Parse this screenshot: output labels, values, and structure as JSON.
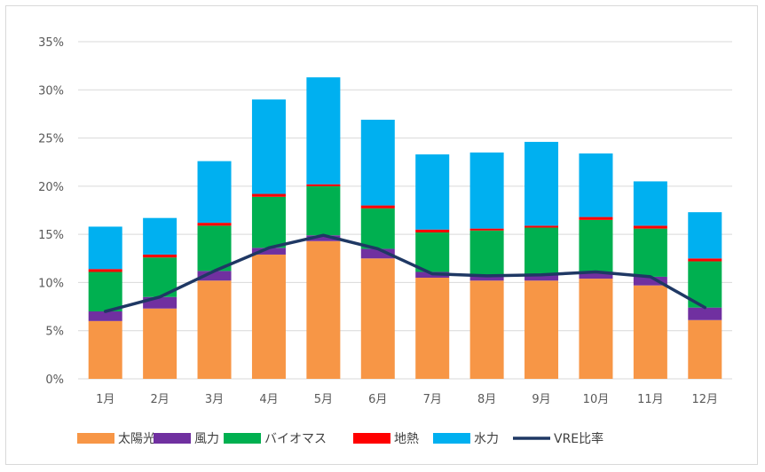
{
  "chart_data": {
    "type": "bar",
    "stacked": true,
    "categories": [
      "1月",
      "2月",
      "3月",
      "4月",
      "5月",
      "6月",
      "7月",
      "8月",
      "9月",
      "10月",
      "11月",
      "12月"
    ],
    "series": [
      {
        "name": "太陽光",
        "color": "#f79646",
        "values": [
          6.0,
          7.3,
          10.2,
          12.9,
          14.3,
          12.5,
          10.5,
          10.2,
          10.2,
          10.4,
          9.7,
          6.1
        ]
      },
      {
        "name": "風力",
        "color": "#7030a0",
        "values": [
          1.0,
          1.2,
          1.0,
          0.7,
          0.6,
          1.0,
          0.6,
          0.5,
          0.6,
          0.7,
          0.9,
          1.3
        ]
      },
      {
        "name": "バイオマス",
        "color": "#00b050",
        "values": [
          4.1,
          4.1,
          4.7,
          5.3,
          5.1,
          4.2,
          4.1,
          4.7,
          4.9,
          5.4,
          5.0,
          4.8
        ]
      },
      {
        "name": "地熱",
        "color": "#ff0000",
        "values": [
          0.3,
          0.3,
          0.3,
          0.3,
          0.2,
          0.3,
          0.3,
          0.2,
          0.2,
          0.3,
          0.3,
          0.3
        ]
      },
      {
        "name": "水力",
        "color": "#00b0f0",
        "values": [
          4.4,
          3.8,
          6.4,
          9.8,
          11.1,
          8.9,
          7.8,
          7.9,
          8.7,
          6.6,
          4.6,
          4.8
        ]
      }
    ],
    "line": {
      "name": "VRE比率",
      "color": "#1f3864",
      "values": [
        7.0,
        8.5,
        11.2,
        13.6,
        14.9,
        13.5,
        10.9,
        10.7,
        10.8,
        11.1,
        10.6,
        7.4
      ]
    },
    "yticks": [
      "0%",
      "5%",
      "10%",
      "15%",
      "20%",
      "25%",
      "30%",
      "35%"
    ],
    "ylim": [
      0,
      35
    ],
    "grid": true,
    "legend": "bottom"
  }
}
